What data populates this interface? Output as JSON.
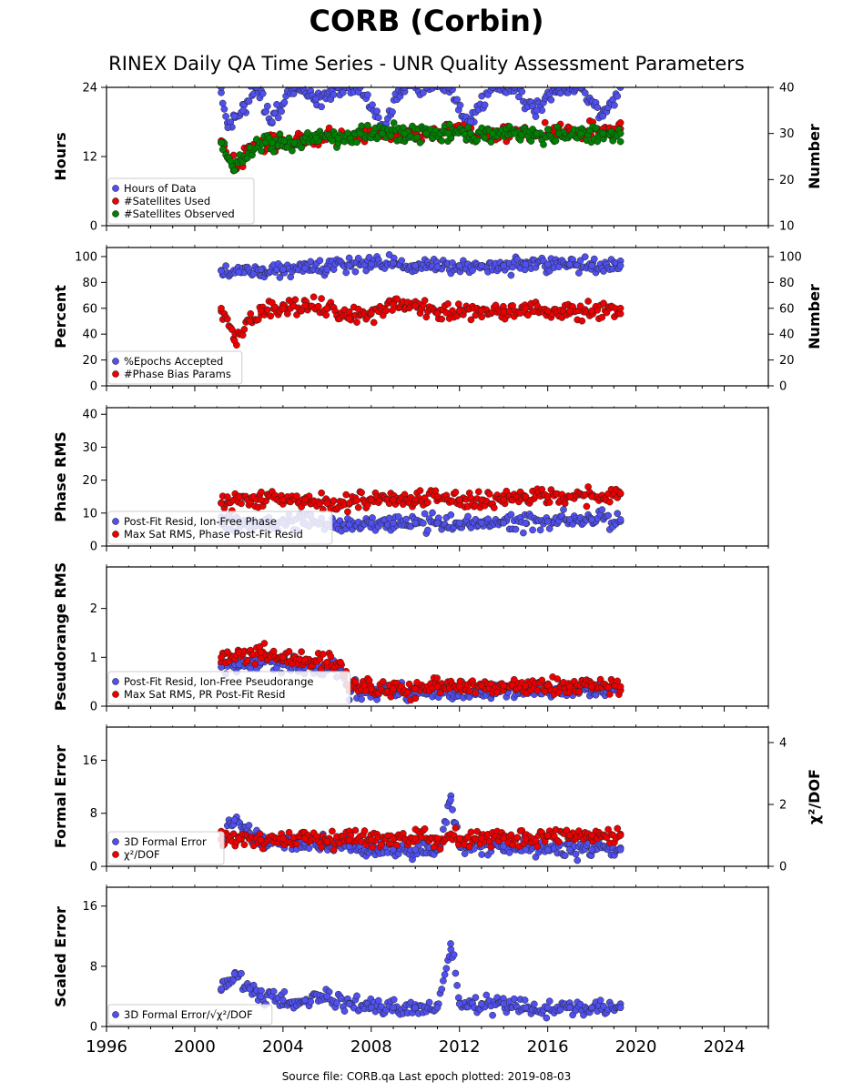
{
  "header": {
    "title": "CORB (Corbin)",
    "subtitle": "RINEX Daily QA Time Series - UNR Quality Assessment Parameters"
  },
  "footer": {
    "source_label": "Source file: CORB.qa Last epoch plotted: 2019-08-03"
  },
  "colors": {
    "blue": "#5050f0",
    "red": "#ee0000",
    "green": "#008000",
    "edge": "#222222"
  },
  "chart_data": [
    {
      "type": "scatter",
      "xlim": [
        1996,
        2026
      ],
      "ylabel": "Hours",
      "ylim": [
        0,
        24
      ],
      "yticks": [
        0,
        12,
        24
      ],
      "y2label": "Number",
      "y2lim": [
        10,
        40
      ],
      "y2ticks": [
        10,
        20,
        30,
        40
      ],
      "legend": "lower-left",
      "series": [
        {
          "name": "Hours of Data",
          "color": "blue",
          "axis": "left",
          "x": [
            2001.2,
            2001.5,
            2001.8,
            2002.2,
            2002.8,
            2003.5,
            2004.5,
            2005.5,
            2006.5,
            2007.5,
            2008.5,
            2009.5,
            2010.5,
            2011.5,
            2012.5,
            2013.5,
            2014.5,
            2015.5,
            2016.5,
            2017.5,
            2018.5,
            2019.3
          ],
          "y": [
            24,
            17,
            19,
            20,
            24,
            18,
            24,
            22,
            24,
            24,
            17,
            24,
            24,
            24,
            18,
            24,
            24,
            20,
            24,
            24,
            19,
            24
          ]
        },
        {
          "name": "#Satellites Used",
          "color": "red",
          "axis": "right",
          "x": [
            2001.2,
            2001.8,
            2002.5,
            2003.5,
            2004.5,
            2005.5,
            2006.5,
            2007.5,
            2008.5,
            2009.5,
            2010.5,
            2011.5,
            2012.5,
            2013.5,
            2014.5,
            2015.5,
            2016.5,
            2017.5,
            2018.5,
            2019.3
          ],
          "y": [
            28,
            23,
            27,
            28,
            28,
            29,
            29,
            29,
            30,
            30,
            30,
            31,
            30,
            30,
            30,
            30,
            31,
            30,
            31,
            31
          ]
        },
        {
          "name": "#Satellites Observed",
          "color": "green",
          "axis": "right",
          "x": [
            2001.2,
            2001.8,
            2002.5,
            2003.5,
            2004.5,
            2005.5,
            2006.5,
            2007.5,
            2008.5,
            2009.5,
            2010.5,
            2011.5,
            2012.5,
            2013.5,
            2014.5,
            2015.5,
            2016.5,
            2017.5,
            2018.5,
            2019.3
          ],
          "y": [
            28,
            22,
            27,
            28,
            28,
            29,
            29,
            30,
            30,
            30,
            30,
            30,
            30,
            30,
            30,
            30,
            30,
            30,
            30,
            30
          ]
        }
      ]
    },
    {
      "type": "scatter",
      "xlim": [
        1996,
        2026
      ],
      "ylabel": "Percent",
      "ylim": [
        0,
        107
      ],
      "yticks": [
        0,
        20,
        40,
        60,
        80,
        100
      ],
      "y2label": "Number",
      "y2lim": [
        0,
        107
      ],
      "y2ticks": [
        0,
        20,
        40,
        60,
        80,
        100
      ],
      "legend": "lower-left",
      "series": [
        {
          "name": "%Epochs Accepted",
          "color": "blue",
          "axis": "left",
          "x": [
            2001.2,
            2002,
            2003,
            2004,
            2005,
            2006,
            2007,
            2008,
            2009,
            2010,
            2011,
            2012,
            2013,
            2014,
            2015,
            2016,
            2017,
            2018,
            2019.3
          ],
          "y": [
            89,
            88,
            90,
            90,
            91,
            90,
            93,
            94,
            95,
            93,
            92,
            93,
            93,
            93,
            94,
            94,
            94,
            93,
            93
          ]
        },
        {
          "name": "#Phase Bias Params",
          "color": "red",
          "axis": "right",
          "x": [
            2001.2,
            2001.8,
            2002.5,
            2003,
            2004,
            2005,
            2006,
            2007,
            2008,
            2009,
            2010,
            2011,
            2012,
            2013,
            2014,
            2015,
            2016,
            2017,
            2018,
            2019.3
          ],
          "y": [
            60,
            35,
            50,
            58,
            60,
            62,
            60,
            52,
            56,
            63,
            62,
            56,
            58,
            58,
            57,
            60,
            58,
            58,
            58,
            60
          ]
        }
      ]
    },
    {
      "type": "scatter",
      "xlim": [
        1996,
        2026
      ],
      "ylabel": "Phase RMS",
      "ylim": [
        0,
        42
      ],
      "yticks": [
        0,
        10,
        20,
        30,
        40
      ],
      "legend": "lower-left",
      "series": [
        {
          "name": "Post-Fit Resid, Ion-Free Phase",
          "color": "blue",
          "x": [
            2001.2,
            2002,
            2003,
            2004,
            2005,
            2006,
            2007,
            2008,
            2009,
            2010,
            2011,
            2012,
            2013,
            2014,
            2015,
            2016,
            2017,
            2018,
            2019.3
          ],
          "y": [
            7,
            7,
            7,
            7,
            7,
            6.5,
            6.5,
            7,
            7,
            7,
            7,
            7,
            7,
            7,
            7,
            7.5,
            8,
            8,
            8
          ]
        },
        {
          "name": "Max Sat RMS, Phase Post-Fit Resid",
          "color": "red",
          "x": [
            2001.2,
            2002,
            2003,
            2004,
            2005,
            2006,
            2007,
            2008,
            2009,
            2010,
            2011,
            2012,
            2013,
            2014,
            2015,
            2016,
            2017,
            2018,
            2019.3
          ],
          "y": [
            13,
            15,
            14,
            14,
            14,
            13,
            13,
            14,
            14,
            14,
            15,
            14,
            14,
            14,
            15,
            15,
            15,
            15,
            16
          ]
        }
      ]
    },
    {
      "type": "scatter",
      "xlim": [
        1996,
        2026
      ],
      "ylabel": "Pseudorange RMS",
      "ylim": [
        0,
        2.85
      ],
      "yticks": [
        0,
        1,
        2
      ],
      "legend": "lower-left",
      "series": [
        {
          "name": "Post-Fit Resid, Ion-Free Pseudorange",
          "color": "blue",
          "x": [
            2001.2,
            2002,
            2003,
            2004,
            2005,
            2006,
            2006.6,
            2007,
            2008,
            2009,
            2010,
            2011,
            2012,
            2013,
            2014,
            2015,
            2016,
            2017,
            2018,
            2019.3
          ],
          "y": [
            0.8,
            0.85,
            0.9,
            0.85,
            0.8,
            0.8,
            0.8,
            0.3,
            0.3,
            0.3,
            0.3,
            0.3,
            0.3,
            0.32,
            0.33,
            0.33,
            0.33,
            0.33,
            0.33,
            0.33
          ]
        },
        {
          "name": "Max Sat RMS, PR Post-Fit Resid",
          "color": "red",
          "x": [
            2001.2,
            2002,
            2003,
            2004,
            2005,
            2006,
            2006.6,
            2007,
            2008,
            2009,
            2010,
            2011,
            2012,
            2013,
            2014,
            2015,
            2016,
            2017,
            2018,
            2019.3
          ],
          "y": [
            1.0,
            1.1,
            1.1,
            1.0,
            0.95,
            0.9,
            0.9,
            0.35,
            0.35,
            0.35,
            0.35,
            0.4,
            0.4,
            0.42,
            0.42,
            0.42,
            0.42,
            0.4,
            0.4,
            0.4
          ]
        }
      ]
    },
    {
      "type": "scatter",
      "xlim": [
        1996,
        2026
      ],
      "ylabel": "Formal Error",
      "ylim": [
        0,
        21
      ],
      "yticks": [
        0,
        8,
        16
      ],
      "y2label": "χ²/DOF",
      "y2lim": [
        0,
        4.5
      ],
      "y2ticks": [
        0,
        2,
        4
      ],
      "legend": "lower-left",
      "series": [
        {
          "name": "3D Formal Error",
          "color": "blue",
          "axis": "left",
          "x": [
            2001.2,
            2001.8,
            2002.5,
            2003,
            2004,
            2005,
            2006,
            2007,
            2008,
            2009,
            2010,
            2011,
            2011.6,
            2012,
            2013,
            2014,
            2015,
            2016,
            2017,
            2018,
            2019.3
          ],
          "y": [
            4,
            7,
            5,
            4,
            3.5,
            3.5,
            3.5,
            3,
            2.5,
            2.5,
            2.5,
            2.5,
            10,
            3,
            3,
            3,
            2.5,
            2.5,
            2.5,
            2.5,
            2.5
          ]
        },
        {
          "name": "χ²/DOF",
          "color": "red",
          "axis": "right",
          "x": [
            2001.2,
            2002,
            2003,
            2004,
            2005,
            2006,
            2007,
            2008,
            2009,
            2010,
            2011,
            2012,
            2013,
            2014,
            2015,
            2016,
            2017,
            2018,
            2019.3
          ],
          "y": [
            0.9,
            0.9,
            0.85,
            0.9,
            0.9,
            0.8,
            0.85,
            0.85,
            0.9,
            0.9,
            0.9,
            0.9,
            0.9,
            0.9,
            0.9,
            1.0,
            1.0,
            1.0,
            1.0
          ]
        }
      ]
    },
    {
      "type": "scatter",
      "xlim": [
        1996,
        2026
      ],
      "ylabel": "Scaled Error",
      "ylim": [
        0,
        18.5
      ],
      "yticks": [
        0,
        8,
        16
      ],
      "legend": "lower-left",
      "xticks": [
        1996,
        2000,
        2004,
        2008,
        2012,
        2016,
        2020,
        2024
      ],
      "series": [
        {
          "name": "3D Formal Error/√χ²/DOF",
          "color": "blue",
          "x": [
            2001.2,
            2001.8,
            2002.5,
            2003,
            2004,
            2005,
            2006,
            2007,
            2008,
            2009,
            2010,
            2011,
            2011.6,
            2012,
            2013,
            2014,
            2015,
            2016,
            2017,
            2018,
            2019.3
          ],
          "y": [
            5,
            7,
            5,
            4,
            3.5,
            3.5,
            4,
            3,
            2.5,
            2.5,
            2.5,
            2.5,
            11,
            3,
            3,
            3,
            2.5,
            2.5,
            2.5,
            2.5,
            2.5
          ]
        }
      ]
    }
  ]
}
